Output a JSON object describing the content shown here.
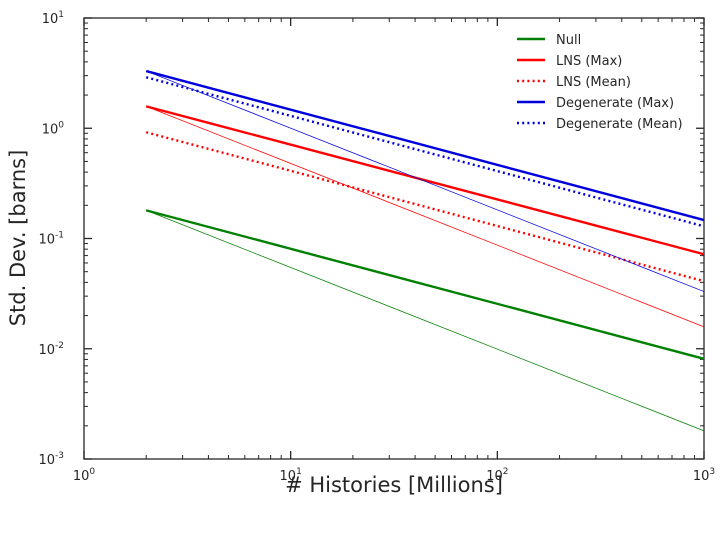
{
  "chart_data": {
    "type": "line",
    "title": "",
    "xlabel": "# Histories [Millions]",
    "ylabel": "Std. Dev. [barns]",
    "xscale": "log",
    "yscale": "log",
    "xlim": [
      1,
      1000
    ],
    "ylim": [
      0.001,
      10
    ],
    "grid": false,
    "legend_position": "top-right",
    "x_tick_labels": [
      {
        "base": "10",
        "exp": "0",
        "value": 1
      },
      {
        "base": "10",
        "exp": "1",
        "value": 10
      },
      {
        "base": "10",
        "exp": "2",
        "value": 100
      },
      {
        "base": "10",
        "exp": "3",
        "value": 1000
      }
    ],
    "y_tick_labels": [
      {
        "base": "10",
        "exp": "-3",
        "value": 0.001
      },
      {
        "base": "10",
        "exp": "-2",
        "value": 0.01
      },
      {
        "base": "10",
        "exp": "-1",
        "value": 0.1
      },
      {
        "base": "10",
        "exp": "0",
        "value": 1
      },
      {
        "base": "10",
        "exp": "1",
        "value": 10
      }
    ],
    "series": [
      {
        "name": "Null",
        "color": "#008000",
        "style": "solid",
        "width": "thick",
        "legend": true,
        "x": [
          2,
          1000
        ],
        "y": [
          0.18,
          0.0081
        ]
      },
      {
        "name": "LNS (Max)",
        "color": "#ff0000",
        "style": "solid",
        "width": "thick",
        "legend": true,
        "x": [
          2,
          1000
        ],
        "y": [
          1.58,
          0.072
        ]
      },
      {
        "name": "LNS (Mean)",
        "color": "#ff0000",
        "style": "dotted",
        "width": "thick",
        "legend": true,
        "x": [
          2,
          1000
        ],
        "y": [
          0.92,
          0.041
        ]
      },
      {
        "name": "Degenerate (Max)",
        "color": "#0000dd",
        "style": "solid",
        "width": "thick",
        "legend": true,
        "x": [
          2,
          1000
        ],
        "y": [
          3.3,
          0.147
        ]
      },
      {
        "name": "Degenerate (Mean)",
        "color": "#0000dd",
        "style": "dotted",
        "width": "thick",
        "legend": true,
        "x": [
          2,
          1000
        ],
        "y": [
          2.9,
          0.129
        ]
      },
      {
        "name": "",
        "color": "#008000",
        "style": "solid",
        "width": "thin",
        "legend": false,
        "x": [
          2,
          1000
        ],
        "y": [
          0.18,
          0.0018
        ]
      },
      {
        "name": "",
        "color": "#ff0000",
        "style": "solid",
        "width": "thin",
        "legend": false,
        "x": [
          2,
          1000
        ],
        "y": [
          1.58,
          0.0158
        ]
      },
      {
        "name": "",
        "color": "#0000dd",
        "style": "solid",
        "width": "thin",
        "legend": false,
        "x": [
          2,
          1000
        ],
        "y": [
          3.3,
          0.033
        ]
      }
    ]
  }
}
